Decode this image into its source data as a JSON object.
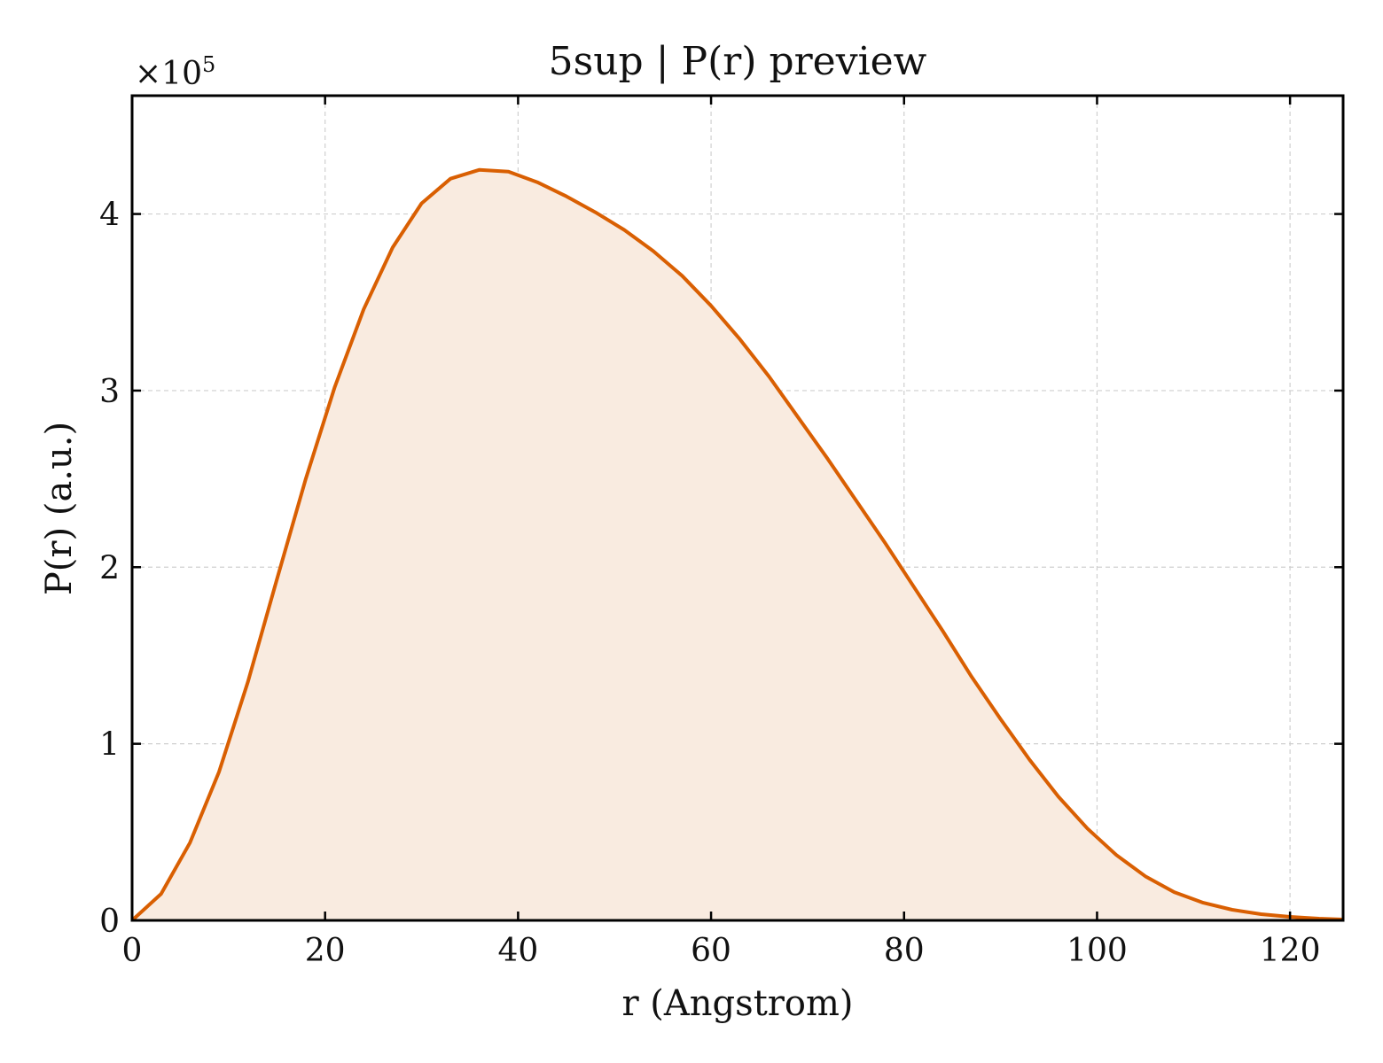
{
  "chart_data": {
    "type": "area",
    "title": "5sup | P(r) preview",
    "xlabel": "r (Angstrom)",
    "ylabel": "P(r) (a.u.)",
    "y_multiplier_label": "×10",
    "y_multiplier_exponent": "5",
    "xlim": [
      0,
      125.5
    ],
    "ylim": [
      0,
      4.67
    ],
    "x_ticks": [
      0,
      20,
      40,
      60,
      80,
      100,
      120
    ],
    "x_tick_labels": [
      "0",
      "20",
      "40",
      "60",
      "80",
      "100",
      "120"
    ],
    "y_ticks": [
      0,
      1,
      2,
      3,
      4
    ],
    "y_tick_labels": [
      "0",
      "1",
      "2",
      "3",
      "4"
    ],
    "grid": true,
    "legend": "none",
    "line_color": "#d95f02",
    "fill_color": "#f9ebe0",
    "series": [
      {
        "x": [
          0,
          3,
          6,
          9,
          12,
          15,
          18,
          21,
          24,
          27,
          30,
          33,
          36,
          39,
          42,
          45,
          48,
          51,
          54,
          57,
          60,
          63,
          66,
          69,
          72,
          75,
          78,
          81,
          84,
          87,
          90,
          93,
          96,
          99,
          102,
          105,
          108,
          111,
          114,
          117,
          120,
          123,
          125.5
        ],
        "values": [
          0.0,
          0.15,
          0.44,
          0.84,
          1.35,
          1.93,
          2.5,
          3.02,
          3.46,
          3.81,
          4.06,
          4.2,
          4.25,
          4.24,
          4.18,
          4.1,
          4.01,
          3.91,
          3.79,
          3.65,
          3.48,
          3.29,
          3.08,
          2.85,
          2.62,
          2.38,
          2.14,
          1.89,
          1.64,
          1.38,
          1.14,
          0.91,
          0.7,
          0.52,
          0.37,
          0.25,
          0.16,
          0.1,
          0.06,
          0.035,
          0.02,
          0.01,
          0.005
        ]
      }
    ]
  }
}
